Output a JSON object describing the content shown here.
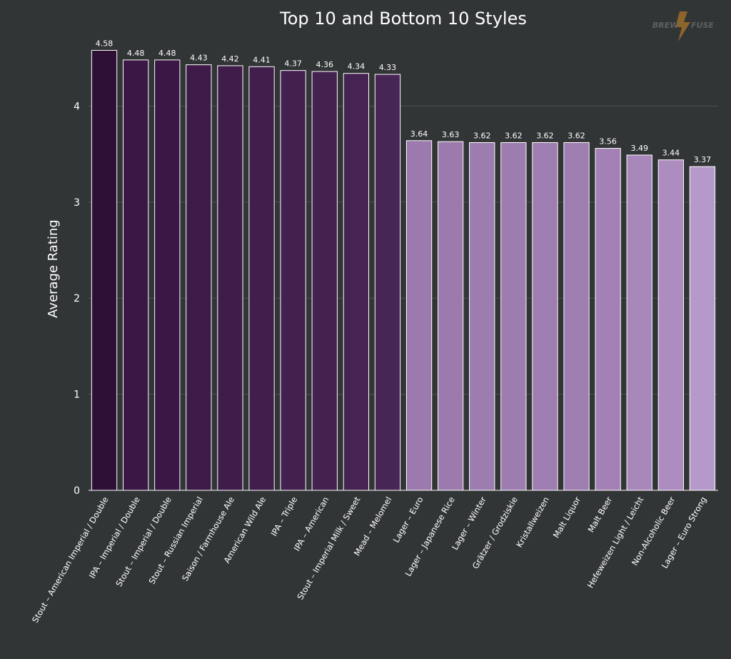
{
  "chart_data": {
    "type": "bar",
    "title": "Top 10 and Bottom 10 Styles",
    "xlabel": "",
    "ylabel": "Average Rating",
    "ylim": [
      0,
      4.7
    ],
    "yticks": [
      0,
      1,
      2,
      3,
      4
    ],
    "grid": "horizontal",
    "categories": [
      "Stout – American Imperial / Double",
      "IPA – Imperial / Double",
      "Stout – Imperial / Double",
      "Stout – Russian Imperial",
      "Saison / Farmhouse Ale",
      "American Wild Ale",
      "IPA – Triple",
      "IPA – American",
      "Stout – Imperial Milk / Sweet",
      "Mead – Melomel",
      "Lager – Euro",
      "Lager – Japanese Rice",
      "Lager – Winter",
      "Grätzer / Grodziskie",
      "Kristallweizen",
      "Malt Liquor",
      "Malt Beer",
      "Hefeweizen Light / Leicht",
      "Non-Alcoholic Beer",
      "Lager – Euro Strong"
    ],
    "values": [
      4.58,
      4.48,
      4.48,
      4.43,
      4.42,
      4.41,
      4.37,
      4.36,
      4.34,
      4.33,
      3.64,
      3.63,
      3.62,
      3.62,
      3.62,
      3.62,
      3.56,
      3.49,
      3.44,
      3.37
    ],
    "value_labels": [
      "4.58",
      "4.48",
      "4.48",
      "4.43",
      "4.42",
      "4.41",
      "4.37",
      "4.36",
      "4.34",
      "4.33",
      "3.64",
      "3.63",
      "3.62",
      "3.62",
      "3.62",
      "3.62",
      "3.56",
      "3.49",
      "3.44",
      "3.37"
    ],
    "bar_colors": [
      "#2e0f35",
      "#3a1744",
      "#3a1744",
      "#3d1a47",
      "#3f1c49",
      "#411e4b",
      "#43204e",
      "#442250",
      "#452352",
      "#472655",
      "#9c7aae",
      "#9c7aae",
      "#9d7caf",
      "#9d7caf",
      "#9e7db0",
      "#9e7db0",
      "#a381b5",
      "#a887ba",
      "#ad8dbf",
      "#b599c9"
    ],
    "bar_stroke": "#ffffff",
    "background": "#323536",
    "grid_color": "#4d5152",
    "axis_color": "#ffffff"
  },
  "logo": {
    "text_left": "BREW",
    "text_right": "FUSE"
  }
}
